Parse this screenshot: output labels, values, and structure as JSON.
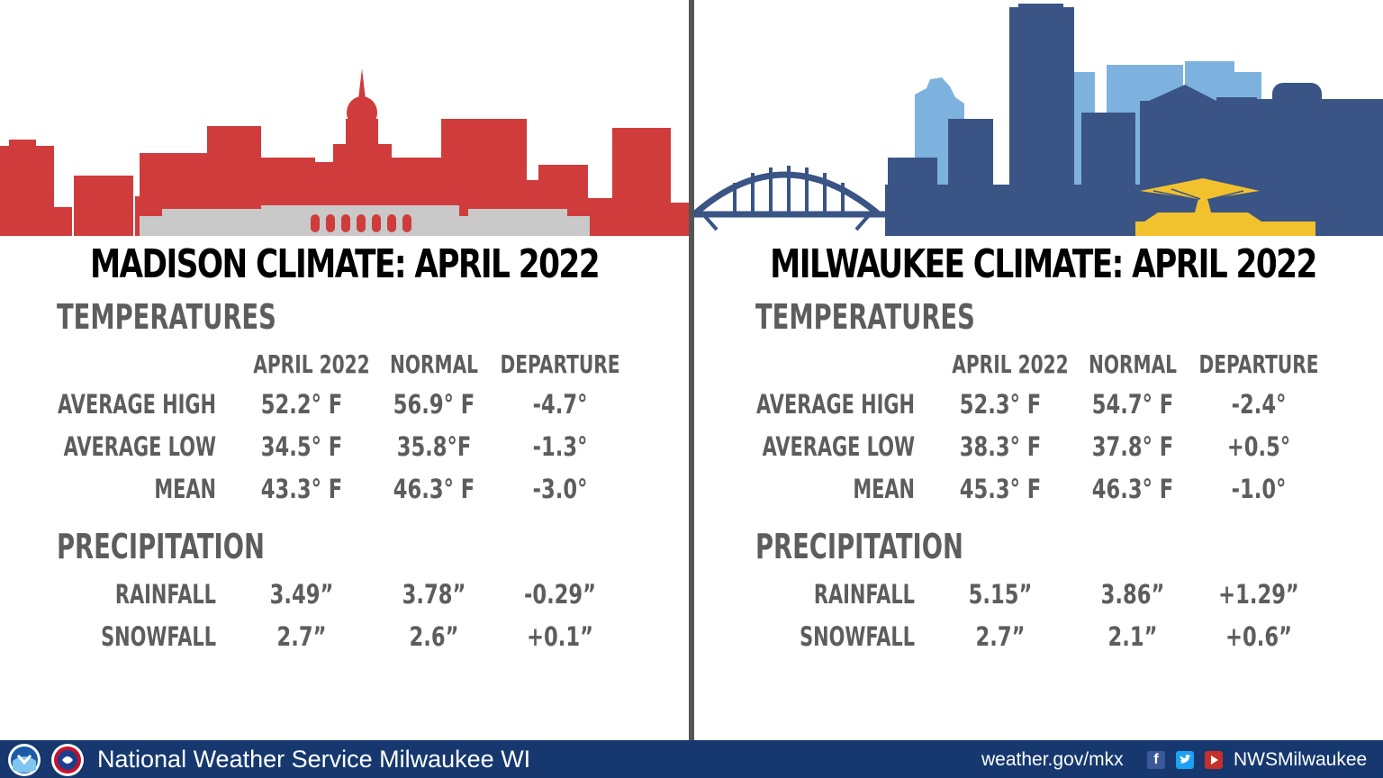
{
  "madison": {
    "title": "MADISON CLIMATE: APRIL 2022",
    "temps_heading": "TEMPERATURES",
    "col_headers": [
      "APRIL 2022",
      "NORMAL",
      "DEPARTURE"
    ],
    "rows": [
      {
        "label": "AVERAGE HIGH",
        "values": [
          "52.2° F",
          "56.9° F",
          "-4.7°"
        ]
      },
      {
        "label": "AVERAGE LOW",
        "values": [
          "34.5° F",
          "35.8°F",
          "-1.3°"
        ]
      },
      {
        "label": "MEAN",
        "values": [
          "43.3° F",
          "46.3° F",
          "-3.0°"
        ]
      }
    ],
    "precip_heading": "PRECIPITATION",
    "precip_rows": [
      {
        "label": "RAINFALL",
        "values": [
          "3.49”",
          "3.78”",
          "-0.29”"
        ]
      },
      {
        "label": "SNOWFALL",
        "values": [
          "2.7”",
          "2.6”",
          "+0.1”"
        ]
      }
    ],
    "skyline_color": "#d03c3c",
    "foreground_color": "#c9c9c9"
  },
  "milwaukee": {
    "title": "MILWAUKEE CLIMATE: APRIL 2022",
    "temps_heading": "TEMPERATURES",
    "col_headers": [
      "APRIL 2022",
      "NORMAL",
      "DEPARTURE"
    ],
    "rows": [
      {
        "label": "AVERAGE HIGH",
        "values": [
          "52.3° F",
          "54.7° F",
          "-2.4°"
        ]
      },
      {
        "label": "AVERAGE LOW",
        "values": [
          "38.3° F",
          "37.8° F",
          "+0.5°"
        ]
      },
      {
        "label": "MEAN",
        "values": [
          "45.3° F",
          "46.3° F",
          "-1.0°"
        ]
      }
    ],
    "precip_heading": "PRECIPITATION",
    "precip_rows": [
      {
        "label": "RAINFALL",
        "values": [
          "5.15”",
          "3.86”",
          "+1.29”"
        ]
      },
      {
        "label": "SNOWFALL",
        "values": [
          "2.7”",
          "2.1”",
          "+0.6”"
        ]
      }
    ],
    "skyline_color": "#3a5485",
    "back_color": "#7db2df",
    "accent_color": "#f2c12e"
  },
  "footer": {
    "org": "National Weather Service Milwaukee WI",
    "url": "weather.gov/mkx",
    "handle": "NWSMilwaukee",
    "icons": [
      "noaa-logo",
      "nws-logo",
      "facebook-icon",
      "twitter-icon",
      "youtube-icon"
    ],
    "background": "#16386f"
  }
}
